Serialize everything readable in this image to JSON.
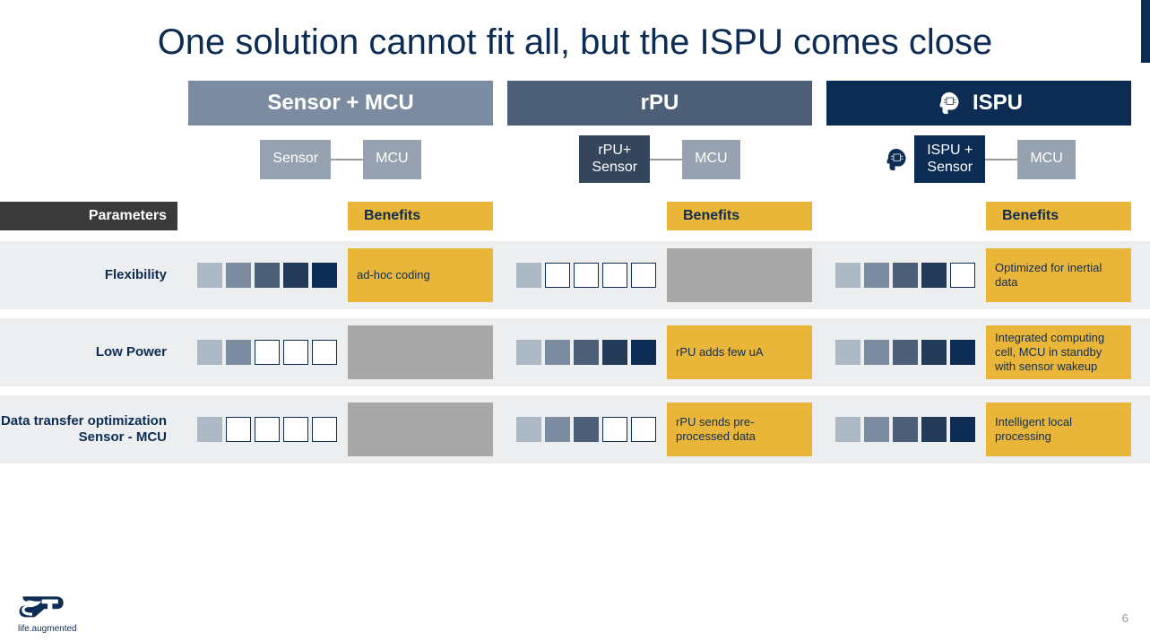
{
  "title": "One solution cannot fit all, but the ISPU comes close",
  "colors": {
    "brand_dark": "#0d2c54",
    "col0_header": "#7c8ca0",
    "col1_header": "#4c5f77",
    "col2_header": "#0d2c54",
    "benefit_yellow": "#eab63a",
    "benefit_empty": "#a8a8a8",
    "row_bg": "#edeeef",
    "param_header_bg": "#3a3a3a",
    "rating_palette": [
      "#aeb9c6",
      "#7c8ca0",
      "#4c5f77",
      "#233a58",
      "#0d2c54"
    ]
  },
  "columns": [
    {
      "header": "Sensor + MCU",
      "arch": [
        {
          "label": "Sensor",
          "style": "sensor"
        },
        {
          "label": "MCU",
          "style": "mcu"
        }
      ]
    },
    {
      "header": "rPU",
      "arch": [
        {
          "label": "rPU+\nSensor",
          "style": "rpu"
        },
        {
          "label": "MCU",
          "style": "mcu"
        }
      ]
    },
    {
      "header": "ISPU",
      "has_icon": true,
      "arch": [
        {
          "label": "ISPU +\nSensor",
          "style": "ispu",
          "has_icon": true
        },
        {
          "label": "MCU",
          "style": "mcu"
        }
      ]
    }
  ],
  "parameters_label": "Parameters",
  "benefits_label": "Benefits",
  "rows": [
    {
      "name": "Flexibility",
      "cells": [
        {
          "rating": 5,
          "benefit": "ad-hoc coding"
        },
        {
          "rating": 1,
          "benefit": ""
        },
        {
          "rating": 4,
          "benefit": "Optimized for inertial data"
        }
      ]
    },
    {
      "name": "Low Power",
      "cells": [
        {
          "rating": 2,
          "benefit": ""
        },
        {
          "rating": 5,
          "benefit": "rPU adds few uA"
        },
        {
          "rating": 5,
          "benefit": "Integrated computing cell, MCU in standby with sensor wakeup"
        }
      ]
    },
    {
      "name": "Data transfer optimization Sensor - MCU",
      "cells": [
        {
          "rating": 1,
          "benefit": ""
        },
        {
          "rating": 3,
          "benefit": "rPU sends pre-processed data"
        },
        {
          "rating": 5,
          "benefit": "Intelligent local processing"
        }
      ]
    }
  ],
  "footer_tagline": "life.augmented",
  "page_number": "6"
}
